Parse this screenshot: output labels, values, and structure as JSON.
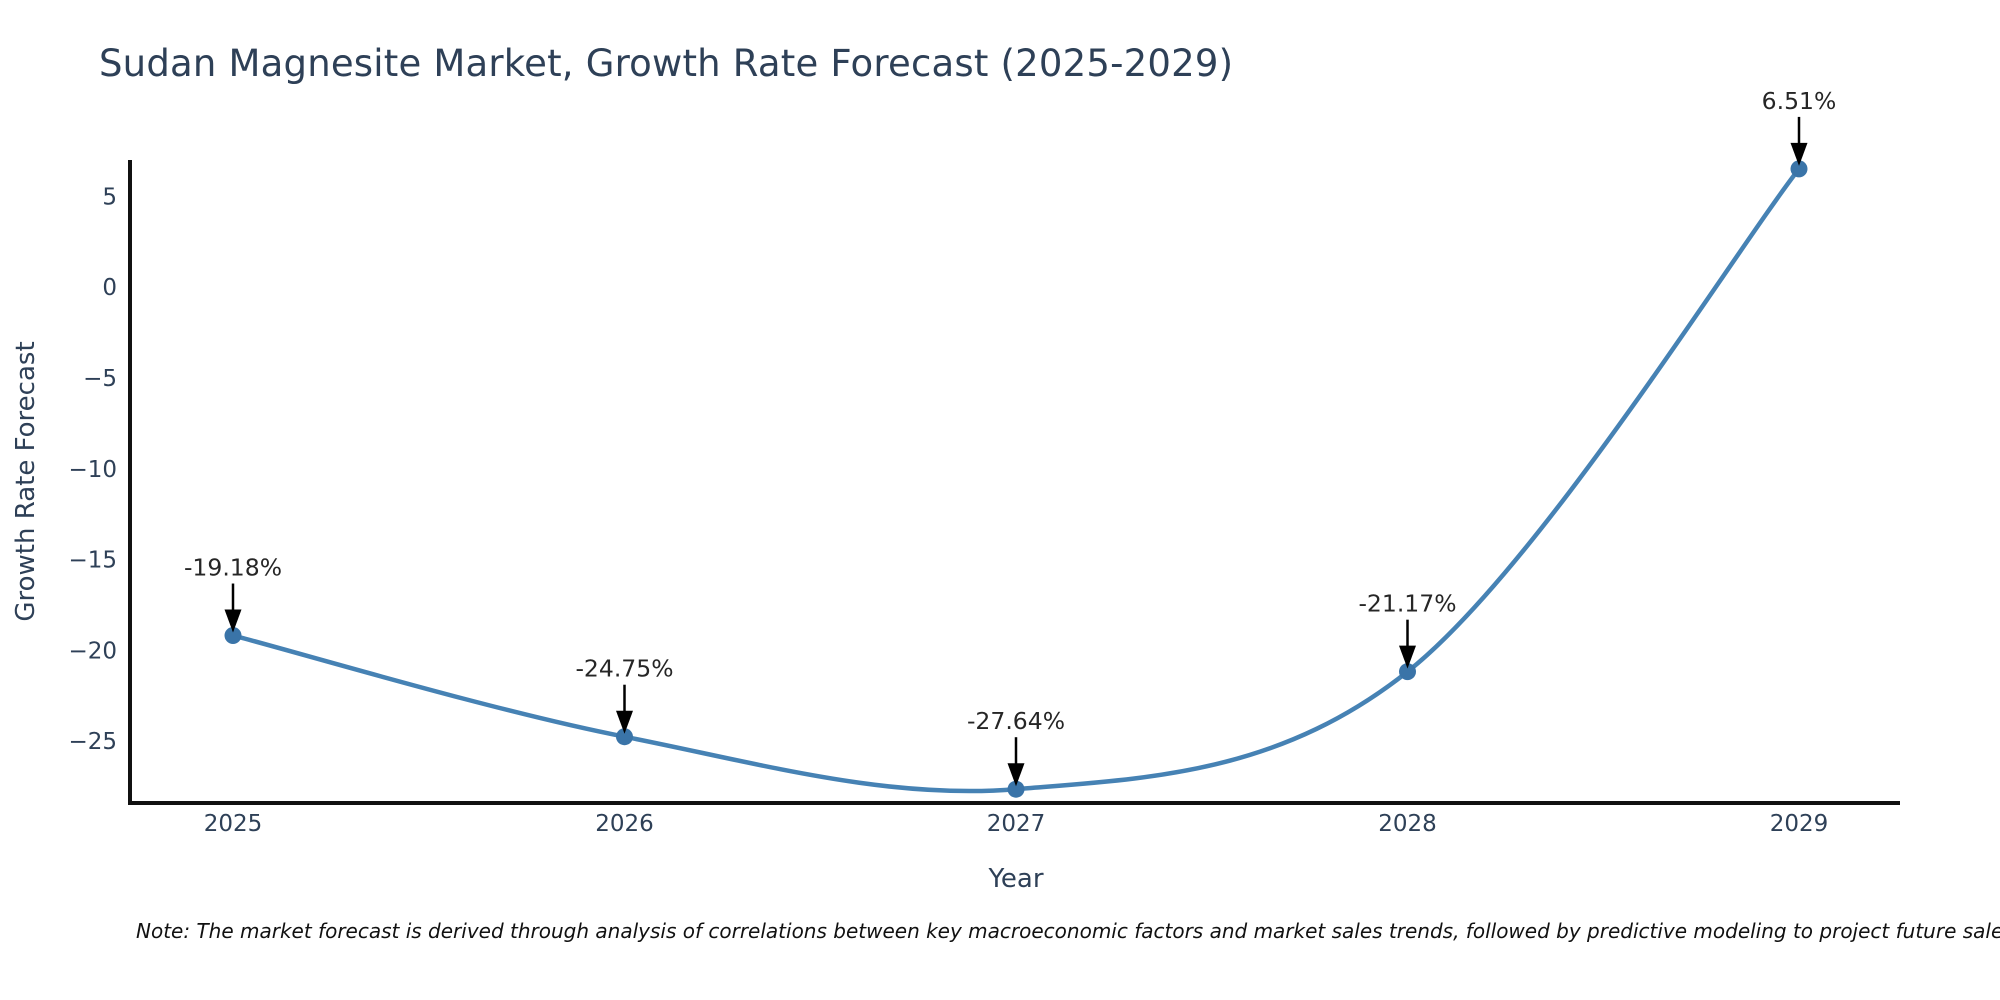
{
  "title": "Sudan Magnesite Market, Growth Rate Forecast (2025-2029)",
  "note": "Note: The market forecast is derived through analysis of correlations between key macroeconomic factors and market sales trends, followed by predictive modeling to project future sales",
  "chart_data": {
    "type": "line",
    "title": "Sudan Magnesite Market, Growth Rate Forecast (2025-2029)",
    "xlabel": "Year",
    "ylabel": "Growth Rate Forecast",
    "categories": [
      "2025",
      "2026",
      "2027",
      "2028",
      "2029"
    ],
    "series": [
      {
        "name": "Growth Rate Forecast",
        "values": [
          -19.18,
          -24.75,
          -27.64,
          -21.17,
          6.51
        ]
      }
    ],
    "point_labels": [
      "-19.18%",
      "-24.75%",
      "-27.64%",
      "-21.17%",
      "6.51%"
    ],
    "ytick_values": [
      5,
      0,
      -5,
      -10,
      -15,
      -20,
      -25
    ],
    "ytick_labels": [
      "5",
      "0",
      "−5",
      "−10",
      "−15",
      "−20",
      "−25"
    ],
    "ylim": [
      -28.4,
      7.0
    ],
    "grid": false,
    "legend": "none",
    "annotation_style": "text-above-with-down-arrow",
    "colors": {
      "line": "#4682b4",
      "marker": "#3a74a8",
      "axis": "#111111",
      "tick_text": "#2e4057",
      "title_text": "#2e4057",
      "annotation_text": "#262626",
      "arrow": "#000000"
    }
  }
}
